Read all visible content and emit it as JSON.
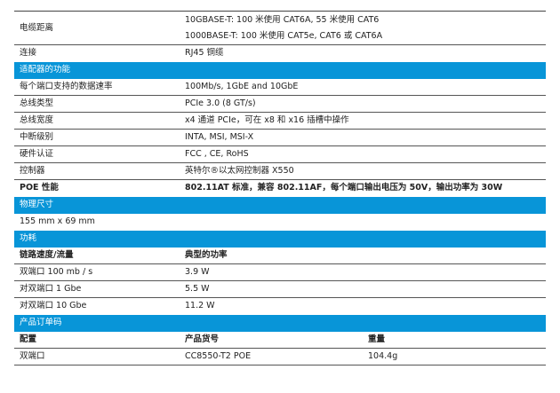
{
  "colors": {
    "section_header": "#0895d8"
  },
  "rows_top": [
    {
      "label": "电缆距离",
      "values": [
        "10GBASE-T: 100 米使用 CAT6A, 55 米使用 CAT6",
        "1000BASE-T: 100 米使用 CAT5e, CAT6 或 CAT6A"
      ]
    },
    {
      "label": "连接",
      "value": "RJ45 铜缆"
    }
  ],
  "sections": {
    "adapter": {
      "title": "适配器的功能",
      "rows": [
        {
          "label": "每个端口支持的数据速率",
          "value": "100Mb/s, 1GbE and 10GbE"
        },
        {
          "label": "总线类型",
          "value": "PCIe 3.0 (8 GT/s)"
        },
        {
          "label": "总线宽度",
          "value": "x4 通道 PCIe，可在 x8 和 x16 插槽中操作"
        },
        {
          "label": "中断级别",
          "value": "INTA, MSI, MSI-X"
        },
        {
          "label": "硬件认证",
          "value": "FCC , CE, RoHS"
        },
        {
          "label": "控制器",
          "value": "英特尔®以太网控制器 X550"
        },
        {
          "label": "POE  性能",
          "value": "802.11AT 标准，兼容 802.11AF，每个端口输出电压为 50V，输出功率为 30W"
        }
      ]
    },
    "dimensions": {
      "title": "物理尺寸",
      "value": "155 mm x 69 mm"
    },
    "power": {
      "title": "功耗",
      "header": [
        "链路速度/流量",
        "典型的功率"
      ],
      "rows": [
        {
          "label": "双端口 100 mb / s",
          "value": "3.9 W"
        },
        {
          "label": "对双端口 1 Gbe",
          "value": "5.5 W"
        },
        {
          "label": "对双端口 10 Gbe",
          "value": "11.2 W"
        }
      ]
    },
    "order": {
      "title": "产品订单码",
      "header": [
        "配置",
        "产品货号",
        "重量"
      ],
      "rows": [
        {
          "config": "双端口",
          "part": "CC8550-T2 POE",
          "weight": "104.4g"
        }
      ]
    }
  }
}
